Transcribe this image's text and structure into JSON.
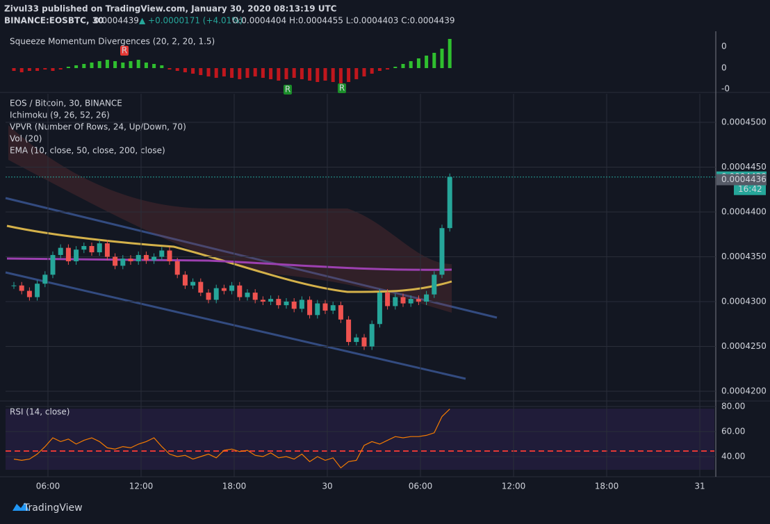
{
  "header": {
    "line1": "Zivul33 published on TradingView.com, January 30, 2020 08:13:19 UTC",
    "symbol": "BINANCE:EOSBTC, 30",
    "last": "0.0004439",
    "change": "▲ +0.0000171 (+4.01%)",
    "ohlc": "O:0.0004404 H:0.0004455 L:0.0004403 C:0.0004439"
  },
  "squeeze": {
    "label": "Squeeze Momentum Divergences (20, 2, 20, 1.5)",
    "axis_labels": [
      "0",
      "0",
      "-0"
    ],
    "markers": [
      "R",
      "R",
      "R"
    ],
    "values": [
      -1,
      -1.5,
      -1,
      -1,
      -0.5,
      -1,
      -0.5,
      0.5,
      1,
      1.5,
      2,
      2.5,
      3,
      2.5,
      2,
      2.5,
      3,
      2,
      1.5,
      1,
      -0.5,
      -1,
      -1.5,
      -2,
      -2.5,
      -3,
      -3.5,
      -3,
      -3.5,
      -4,
      -3.5,
      -3,
      -3.5,
      -4,
      -4.5,
      -4,
      -3.5,
      -4,
      -4.5,
      -5,
      -4.5,
      -5,
      -5.5,
      -5,
      -4,
      -3,
      -2,
      -1,
      -0.5,
      0.5,
      1.5,
      2.5,
      3.5,
      4.5,
      5.5,
      7,
      10.5
    ]
  },
  "main": {
    "legend": [
      "EOS / Bitcoin, 30, BINANCE",
      "Ichimoku (9, 26, 52, 26)",
      "VPVR (Number Of Rows, 24, Up/Down, 70)",
      "Vol (20)",
      "EMA (10, close, 50, close, 200, close)"
    ],
    "ylim": [
      0.00041875,
      0.0004515
    ],
    "yticks": [
      {
        "value": 0.00045,
        "label": "0.0004500"
      },
      {
        "value": 0.000445,
        "label": "0.0004450"
      },
      {
        "value": 0.00044,
        "label": "0.0004400"
      },
      {
        "value": 0.000435,
        "label": "0.0004350"
      },
      {
        "value": 0.00043,
        "label": "0.0004300"
      },
      {
        "value": 0.000425,
        "label": "0.0004250"
      },
      {
        "value": 0.00042,
        "label": "0.0004200"
      }
    ],
    "last_price": {
      "value": 0.0004439,
      "label": "0.0004439"
    },
    "countdown": "16:42",
    "prev_price": {
      "value": 0.0004436,
      "label": "0.0004436"
    },
    "closes": [
      0.0004318,
      0.0004312,
      0.0004305,
      0.000432,
      0.000433,
      0.0004352,
      0.000436,
      0.0004345,
      0.0004358,
      0.0004362,
      0.0004355,
      0.0004365,
      0.000435,
      0.000434,
      0.0004348,
      0.0004345,
      0.0004352,
      0.0004346,
      0.000435,
      0.0004357,
      0.0004345,
      0.000433,
      0.0004318,
      0.0004322,
      0.000431,
      0.0004302,
      0.0004315,
      0.0004312,
      0.0004318,
      0.0004305,
      0.000431,
      0.0004302,
      0.00043,
      0.0004303,
      0.0004296,
      0.00043,
      0.0004292,
      0.0004302,
      0.0004285,
      0.0004298,
      0.000429,
      0.0004296,
      0.000428,
      0.0004255,
      0.000426,
      0.000425,
      0.0004275,
      0.000431,
      0.0004295,
      0.0004305,
      0.0004298,
      0.0004303,
      0.00043,
      0.0004308,
      0.000433,
      0.0004382,
      0.0004439
    ]
  },
  "rsi": {
    "label": "RSI (14, close)",
    "ylim": [
      26,
      83
    ],
    "yticks": [
      {
        "value": 80,
        "label": "80.00"
      },
      {
        "value": 60,
        "label": "60.00"
      },
      {
        "value": 40,
        "label": "40.00"
      }
    ],
    "values": [
      38,
      37,
      38,
      42,
      48,
      55,
      52,
      54,
      50,
      53,
      55,
      52,
      47,
      46,
      48,
      47,
      50,
      52,
      55,
      48,
      42,
      40,
      41,
      38,
      40,
      42,
      39,
      45,
      46,
      44,
      45,
      41,
      40,
      43,
      39,
      40,
      38,
      42,
      36,
      40,
      37,
      39,
      31,
      36,
      37,
      49,
      52,
      50,
      53,
      56,
      55,
      56,
      56,
      57,
      59,
      72,
      78
    ]
  },
  "time_axis": [
    "06:00",
    "12:00",
    "18:00",
    "30",
    "06:00",
    "12:00",
    "18:00",
    "31"
  ],
  "footer": {
    "brand": "TradingView"
  }
}
